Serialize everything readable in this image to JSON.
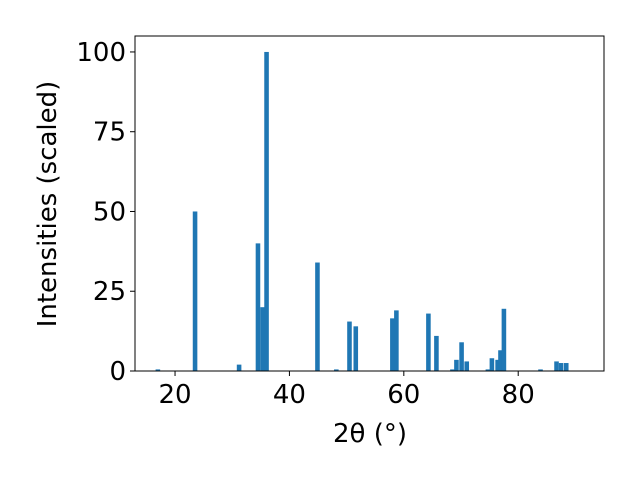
{
  "chart_data": {
    "type": "bar",
    "xlabel": "2θ (°)",
    "ylabel": "Intensities (scaled)",
    "x": [
      17.0,
      23.5,
      31.2,
      34.5,
      35.3,
      36.0,
      44.9,
      48.2,
      50.5,
      51.6,
      58.0,
      58.7,
      64.3,
      65.7,
      68.5,
      69.2,
      70.1,
      71.0,
      74.7,
      75.4,
      76.4,
      76.9,
      77.5,
      83.9,
      86.7,
      87.5,
      88.4
    ],
    "values": [
      0.5,
      50,
      2,
      40,
      20,
      100,
      34,
      0.5,
      15.5,
      14,
      16.5,
      19,
      18,
      11,
      0.5,
      3.5,
      9,
      3,
      0.5,
      4,
      3.5,
      6.5,
      19.5,
      0.5,
      3,
      2.5,
      2.5
    ],
    "bar_width": 0.8,
    "color": "#1f77b4",
    "xlim": [
      13,
      95
    ],
    "xticks": [
      20,
      40,
      60,
      80
    ],
    "ylim": [
      0,
      105
    ],
    "yticks": [
      0,
      25,
      50,
      75,
      100
    ]
  }
}
